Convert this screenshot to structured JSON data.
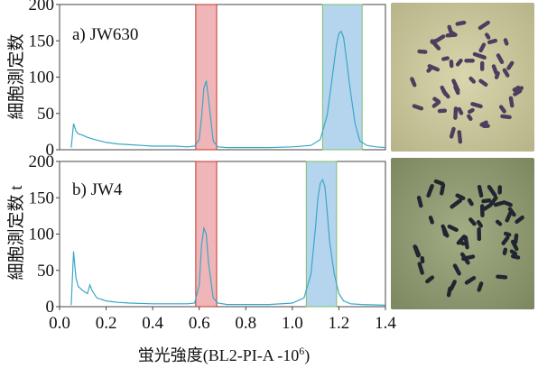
{
  "chart_data": [
    {
      "type": "line",
      "panel_label": "a) JW630",
      "ylabel": "細胞測定数",
      "xlim": [
        0.0,
        1.4
      ],
      "ylim": [
        0,
        200
      ],
      "yticks": [
        "200",
        "150",
        "100",
        "50",
        "0"
      ],
      "x": [
        0.05,
        0.06,
        0.07,
        0.08,
        0.1,
        0.12,
        0.15,
        0.2,
        0.25,
        0.3,
        0.35,
        0.4,
        0.45,
        0.5,
        0.55,
        0.58,
        0.6,
        0.61,
        0.62,
        0.63,
        0.64,
        0.66,
        0.68,
        0.72,
        0.8,
        0.9,
        1.0,
        1.08,
        1.12,
        1.15,
        1.17,
        1.19,
        1.2,
        1.21,
        1.22,
        1.23,
        1.25,
        1.27,
        1.29,
        1.32,
        1.36,
        1.4
      ],
      "values": [
        3,
        36,
        26,
        22,
        20,
        17,
        14,
        10,
        8,
        7,
        6,
        5,
        5,
        5,
        4,
        5,
        14,
        45,
        85,
        95,
        70,
        12,
        4,
        3,
        3,
        3,
        4,
        6,
        14,
        48,
        96,
        145,
        160,
        163,
        155,
        130,
        80,
        35,
        12,
        6,
        4,
        3
      ],
      "bands": [
        {
          "x0": 0.585,
          "x1": 0.675,
          "color": "#e99ca0"
        },
        {
          "x0": 1.13,
          "x1": 1.3,
          "color": "#9cc6e8"
        }
      ],
      "line_color": "#3aa7c7"
    },
    {
      "type": "line",
      "panel_label": "b) JW4",
      "ylabel": "細胞測定数 t",
      "xlim": [
        0.0,
        1.4
      ],
      "ylim": [
        0,
        200
      ],
      "yticks": [
        "200",
        "150",
        "100",
        "50",
        "0"
      ],
      "xticks": [
        "0.0",
        "0.2",
        "0.4",
        "0.6",
        "0.8",
        "1.0",
        "1.2",
        "1.4"
      ],
      "x": [
        0.05,
        0.06,
        0.07,
        0.08,
        0.1,
        0.12,
        0.13,
        0.14,
        0.16,
        0.2,
        0.25,
        0.3,
        0.4,
        0.5,
        0.55,
        0.58,
        0.6,
        0.61,
        0.62,
        0.63,
        0.64,
        0.66,
        0.68,
        0.72,
        0.8,
        0.9,
        1.0,
        1.05,
        1.08,
        1.1,
        1.11,
        1.12,
        1.13,
        1.14,
        1.15,
        1.16,
        1.18,
        1.2,
        1.22,
        1.25,
        1.3,
        1.4
      ],
      "values": [
        2,
        76,
        40,
        28,
        22,
        18,
        30,
        22,
        12,
        8,
        6,
        5,
        4,
        4,
        4,
        5,
        30,
        85,
        108,
        100,
        60,
        12,
        5,
        3,
        3,
        3,
        5,
        12,
        45,
        110,
        150,
        170,
        175,
        165,
        130,
        90,
        45,
        18,
        8,
        4,
        3,
        2
      ],
      "bands": [
        {
          "x0": 0.585,
          "x1": 0.675,
          "color": "#e99ca0"
        },
        {
          "x0": 1.06,
          "x1": 1.19,
          "color": "#9cc6e8"
        }
      ],
      "line_color": "#3aa7c7"
    }
  ],
  "xlabel_main": "蛍光強度(BL2-PI-A -10",
  "xlabel_sup": "6",
  "xlabel_end": ")",
  "micrographs": [
    {
      "name": "chromosome-spread-a",
      "background": "#c7c39a"
    },
    {
      "name": "chromosome-spread-b",
      "background": "#8e9870"
    }
  ]
}
